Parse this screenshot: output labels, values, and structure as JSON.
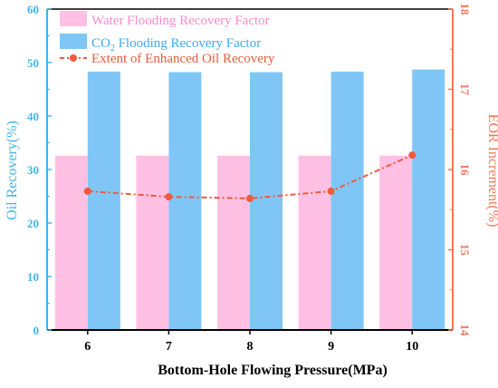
{
  "chart_data": {
    "type": "bar",
    "categories": [
      "6",
      "7",
      "8",
      "9",
      "10"
    ],
    "xlabel": "Bottom-Hole Flowing Pressure(MPa)",
    "ylabel_left": "Oil Recovery(%)",
    "ylabel_right": "EOR Increment(%)",
    "ylim_left": [
      0,
      60
    ],
    "ylim_right": [
      14,
      18
    ],
    "left_ticks": [
      "0",
      "10",
      "20",
      "30",
      "40",
      "50",
      "60"
    ],
    "right_ticks": [
      "14",
      "15",
      "16",
      "17",
      "18"
    ],
    "grid": false,
    "legend_position": "top-left",
    "series": [
      {
        "name": "Water Flooding Recovery Factor",
        "kind": "bar",
        "axis": "left",
        "color": "#ffc0e4",
        "values": [
          32.6,
          32.6,
          32.6,
          32.6,
          32.6
        ]
      },
      {
        "name": "CO2 Flooding Recovery Factor",
        "legend_prefix": "CO",
        "legend_sub": "2",
        "legend_suffix": " Flooding Recovery Factor",
        "kind": "bar",
        "axis": "left",
        "color": "#7fc6f7",
        "values": [
          48.3,
          48.2,
          48.2,
          48.3,
          48.7
        ]
      },
      {
        "name": "Extent of Enhanced Oil Recovery",
        "kind": "line",
        "axis": "right",
        "color": "#f05a3c",
        "values": [
          15.73,
          15.66,
          15.64,
          15.73,
          16.18
        ]
      }
    ],
    "colors": {
      "left_axis": "#3eb4ec",
      "right_axis": "#f2775a",
      "bottom_axis": "#000000"
    }
  }
}
